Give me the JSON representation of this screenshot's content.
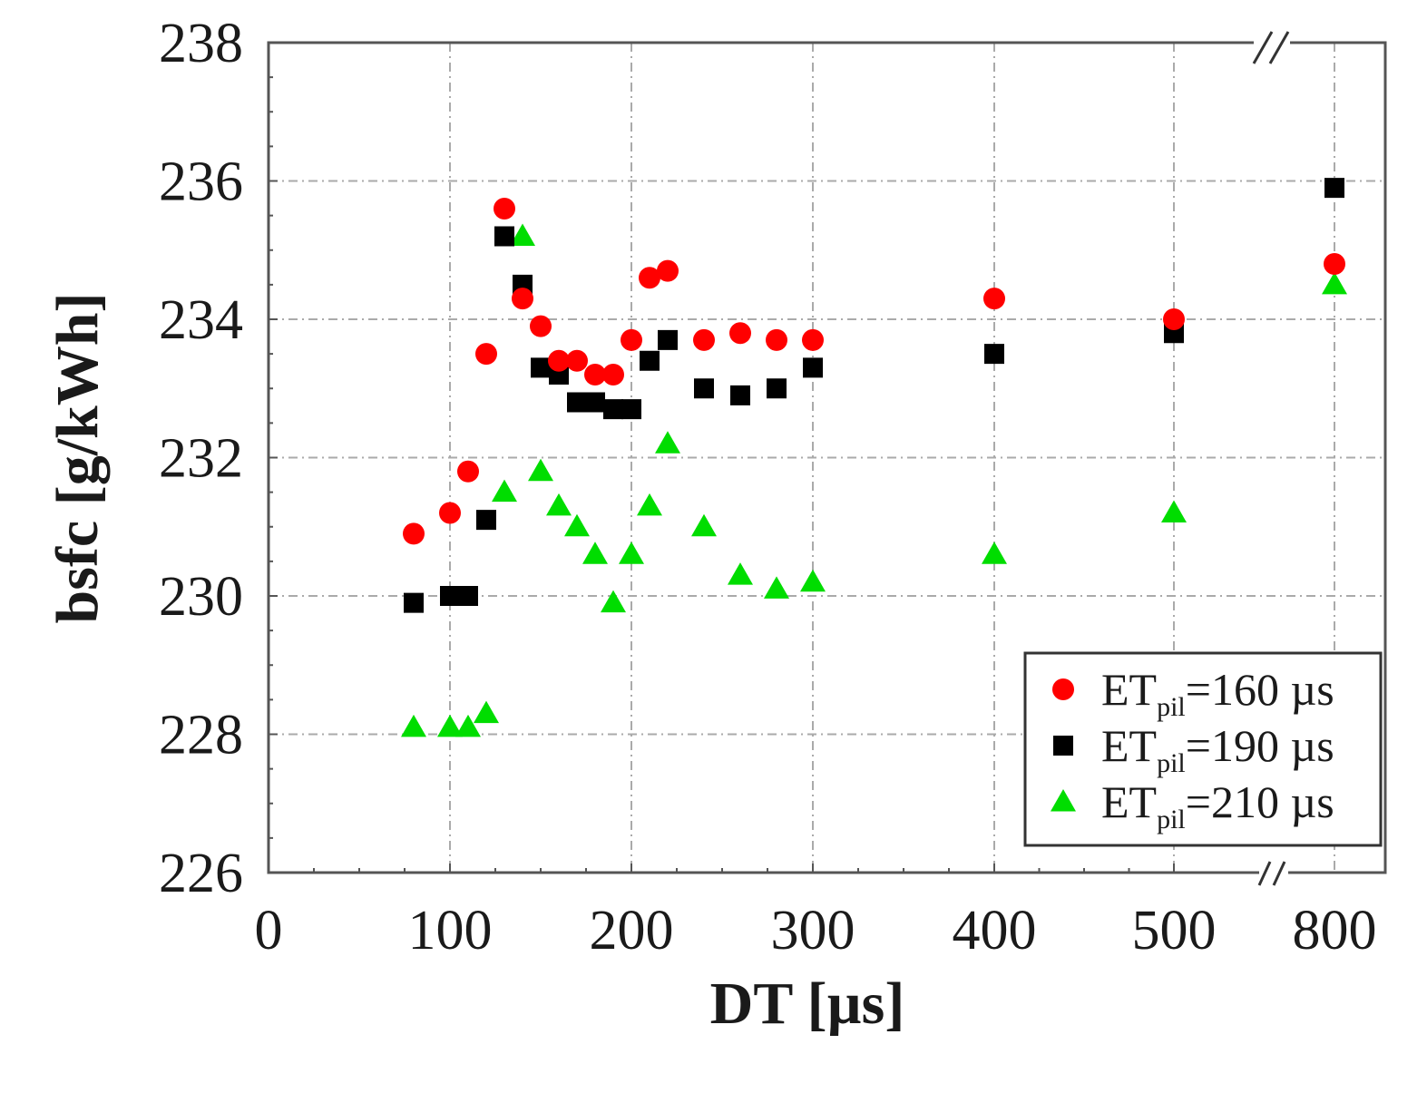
{
  "chart_data": {
    "type": "scatter",
    "title": "",
    "xlabel": "DT [µs]",
    "ylabel": "bsfc [g/kWh]",
    "xlim": [
      0,
      800
    ],
    "ylim": [
      226,
      238
    ],
    "x_scale": "broken",
    "x_axis_break": {
      "from": 500,
      "to": 800
    },
    "x_ticks": [
      "0",
      "100",
      "200",
      "300",
      "400",
      "500",
      "800"
    ],
    "x_tick_values": [
      0,
      100,
      200,
      300,
      400,
      500,
      800
    ],
    "y_ticks": [
      "226",
      "228",
      "230",
      "232",
      "234",
      "236",
      "238"
    ],
    "y_tick_values": [
      226,
      228,
      230,
      232,
      234,
      236,
      238
    ],
    "grid": true,
    "legend_position": "bottom-right",
    "series": [
      {
        "name": "ET_pil=160 µs",
        "legend_main": "ET",
        "legend_sub": "pil",
        "legend_value": "=160 µs",
        "color": "#ff0000",
        "marker": "circle",
        "x": [
          80,
          100,
          110,
          120,
          130,
          140,
          150,
          160,
          170,
          180,
          190,
          200,
          210,
          220,
          240,
          260,
          280,
          300,
          400,
          500,
          800
        ],
        "y": [
          230.9,
          231.2,
          231.8,
          233.5,
          235.6,
          234.3,
          233.9,
          233.4,
          233.4,
          233.2,
          233.2,
          233.7,
          234.6,
          234.7,
          233.7,
          233.8,
          233.7,
          233.7,
          234.3,
          234.0,
          234.8
        ]
      },
      {
        "name": "ET_pil=190 µs",
        "legend_main": "ET",
        "legend_sub": "pil",
        "legend_value": "=190 µs",
        "color": "#000000",
        "marker": "square",
        "x": [
          80,
          100,
          110,
          120,
          130,
          140,
          150,
          160,
          170,
          180,
          190,
          200,
          210,
          220,
          240,
          260,
          280,
          300,
          400,
          500,
          800
        ],
        "y": [
          229.9,
          230.0,
          230.0,
          231.1,
          235.2,
          234.5,
          233.3,
          233.2,
          232.8,
          232.8,
          232.7,
          232.7,
          233.4,
          233.7,
          233.0,
          232.9,
          233.0,
          233.3,
          233.5,
          233.8,
          235.9
        ]
      },
      {
        "name": "ET_pil=210 µs",
        "legend_main": "ET",
        "legend_sub": "pil",
        "legend_value": "=210 µs",
        "color": "#00dd00",
        "marker": "triangle",
        "x": [
          80,
          100,
          110,
          120,
          130,
          140,
          150,
          160,
          170,
          180,
          190,
          200,
          210,
          220,
          240,
          260,
          280,
          300,
          400,
          500,
          800
        ],
        "y": [
          228.1,
          228.1,
          228.1,
          228.3,
          231.5,
          235.2,
          231.8,
          231.3,
          231.0,
          230.6,
          229.9,
          230.6,
          231.3,
          232.2,
          231.0,
          230.3,
          230.1,
          230.2,
          230.6,
          231.2,
          234.5
        ]
      }
    ]
  }
}
